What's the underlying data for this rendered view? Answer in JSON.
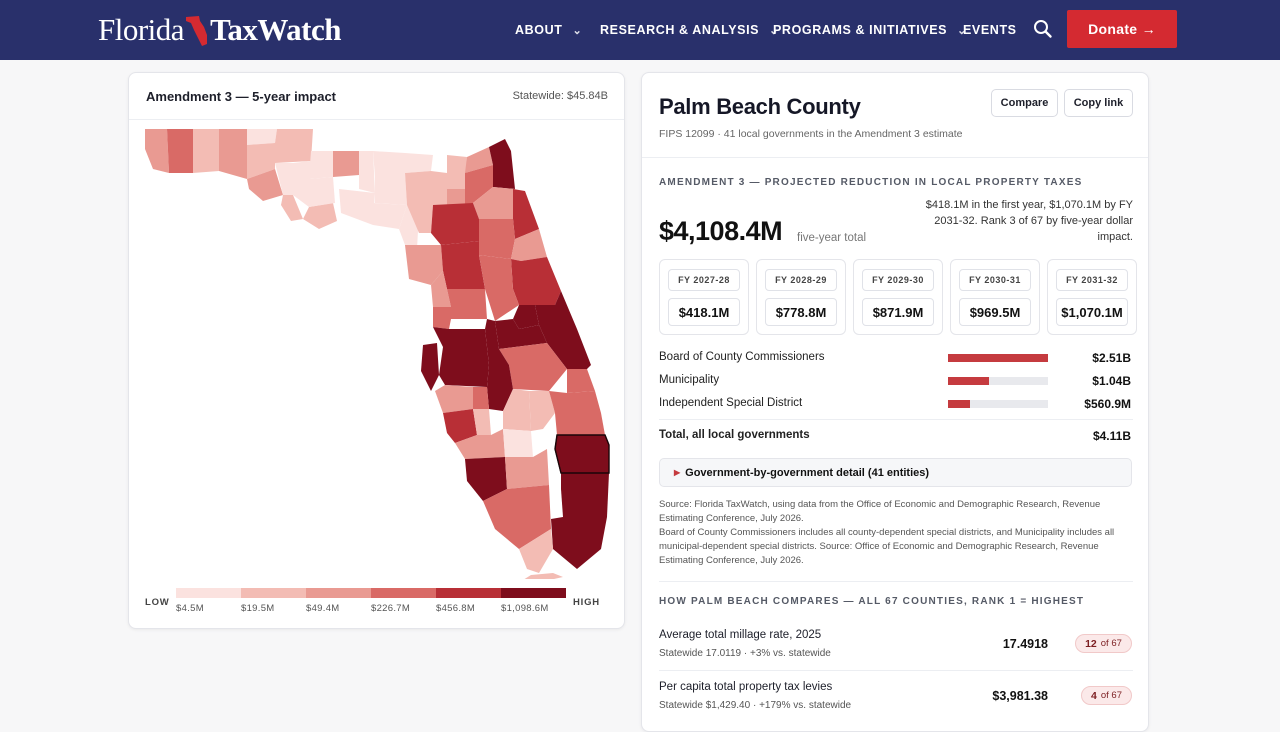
{
  "header": {
    "logo_left": "Florida",
    "logo_right": "TaxWatch",
    "nav": [
      {
        "label": "ABOUT"
      },
      {
        "label": "RESEARCH & ANALYSIS"
      },
      {
        "label": "PROGRAMS & INITIATIVES"
      },
      {
        "label": "EVENTS"
      }
    ],
    "donate_label": "Donate →"
  },
  "map": {
    "title": "Amendment 3 — 5-year impact",
    "statewide": "Statewide: $45.84B",
    "legend_low": "LOW",
    "legend_high": "HIGH",
    "legend_labels": [
      "$4.5M",
      "$19.5M",
      "$49.4M",
      "$226.7M",
      "$456.8M",
      "$1,098.6M"
    ],
    "legend_colors": [
      "#fbe2df",
      "#f3bcb4",
      "#e99a92",
      "#d96a66",
      "#b82f36",
      "#7e0d1c"
    ]
  },
  "county": {
    "name": "Palm Beach County",
    "subtitle": "FIPS 12099 · 41 local governments in the Amendment 3 estimate",
    "compare_label": "Compare",
    "copy_label": "Copy link",
    "section1": "AMENDMENT 3 — PROJECTED REDUCTION IN LOCAL PROPERTY TAXES",
    "total": "$4,108.4M",
    "total_suffix": "five-year total",
    "total_note": "$418.1M in the first year, $1,070.1M by FY 2031-32. Rank 3 of 67 by five-year dollar impact.",
    "years": [
      {
        "label": "FY 2027-28",
        "value": "$418.1M"
      },
      {
        "label": "FY 2028-29",
        "value": "$778.8M"
      },
      {
        "label": "FY 2029-30",
        "value": "$871.9M"
      },
      {
        "label": "FY 2030-31",
        "value": "$969.5M"
      },
      {
        "label": "FY 2031-32",
        "value": "$1,070.1M"
      }
    ],
    "breakdown": [
      {
        "label": "Board of County Commissioners",
        "value": "$2.51B",
        "share": 1.0
      },
      {
        "label": "Municipality",
        "value": "$1.04B",
        "share": 0.41
      },
      {
        "label": "Independent Special District",
        "value": "$560.9M",
        "share": 0.22
      }
    ],
    "total_row": {
      "label": "Total, all local governments",
      "value": "$4.11B"
    },
    "detail_label": "Government-by-government detail (41 entities)",
    "note1": "Source: Florida TaxWatch, using data from the Office of Economic and Demographic Research, Revenue Estimating Conference, July 2026.",
    "note2": "Board of County Commissioners includes all county-dependent special districts, and Municipality includes all municipal-dependent special districts. Source: Office of Economic and Demographic Research, Revenue Estimating Conference, July 2026.",
    "section2": "HOW PALM BEACH COMPARES — ALL 67 COUNTIES, RANK 1 = HIGHEST",
    "comparisons": [
      {
        "label": "Average total millage rate, 2025",
        "sub": "Statewide 17.0119 · +3% vs. statewide",
        "value": "17.4918",
        "rank": "12",
        "of": "of 67"
      },
      {
        "label": "Per capita total property tax levies",
        "sub": "Statewide $1,429.40 · +179% vs. statewide",
        "value": "$3,981.38",
        "rank": "4",
        "of": "of 67"
      }
    ]
  },
  "colors": {
    "navy": "#29306b",
    "accent_red": "#d42a31",
    "bar_red": "#c53b3f"
  }
}
